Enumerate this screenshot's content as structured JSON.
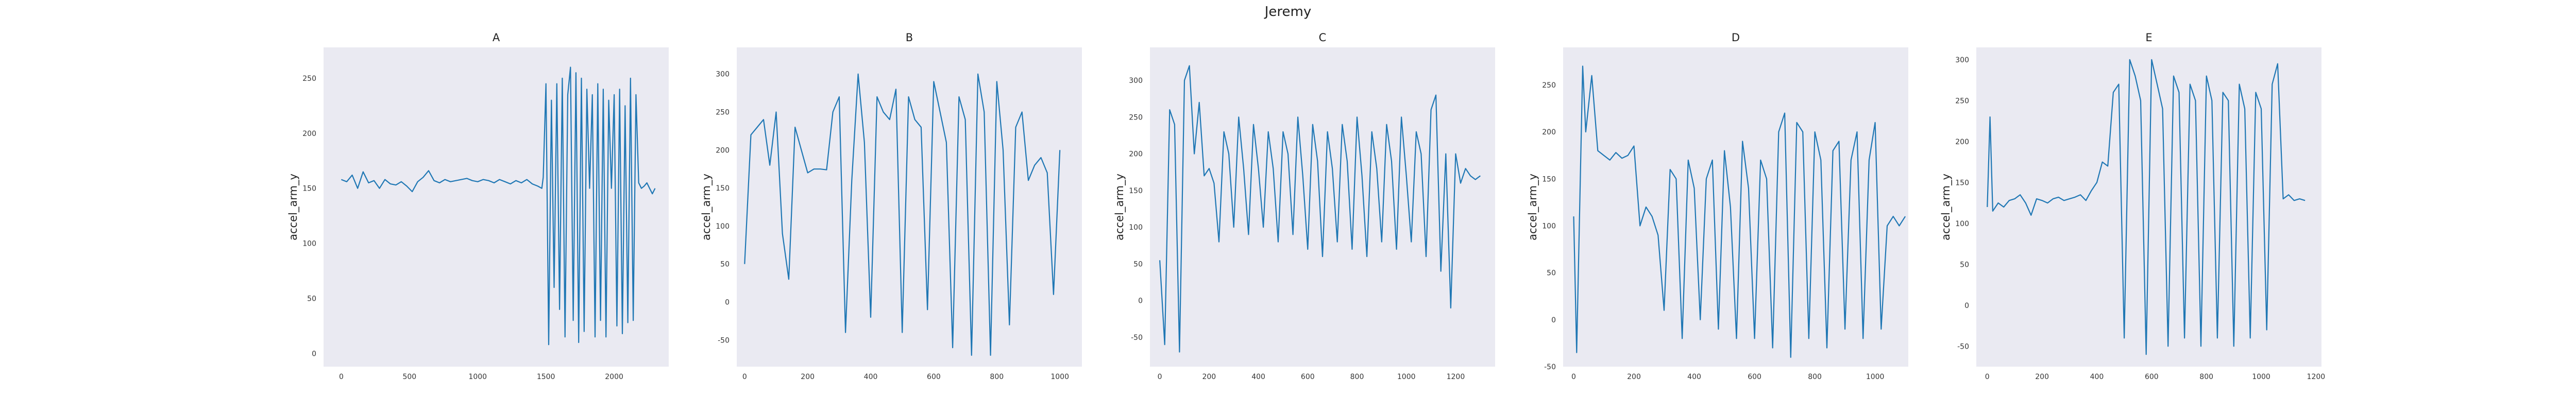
{
  "figure": {
    "suptitle": "Jeremy"
  },
  "colors": {
    "line": "#1f77b4",
    "axes_bg": "#eaeaf2"
  },
  "chart_data": [
    {
      "type": "line",
      "title": "A",
      "ylabel": "accel_arm_y",
      "xlabel": "",
      "xlim": [
        -130,
        2400
      ],
      "ylim": [
        -12,
        278
      ],
      "xticks": [
        0,
        500,
        1000,
        1500,
        2000
      ],
      "yticks": [
        0,
        50,
        100,
        150,
        200,
        250
      ],
      "grid": false,
      "x": [
        0,
        40,
        80,
        120,
        160,
        200,
        240,
        280,
        320,
        360,
        400,
        440,
        480,
        520,
        560,
        600,
        640,
        680,
        720,
        760,
        800,
        840,
        880,
        920,
        960,
        1000,
        1040,
        1080,
        1120,
        1160,
        1200,
        1240,
        1280,
        1320,
        1360,
        1400,
        1440,
        1470,
        1480,
        1500,
        1520,
        1540,
        1560,
        1580,
        1600,
        1620,
        1640,
        1660,
        1680,
        1700,
        1720,
        1740,
        1760,
        1780,
        1800,
        1820,
        1840,
        1860,
        1880,
        1900,
        1920,
        1940,
        1960,
        1980,
        2000,
        2020,
        2040,
        2060,
        2080,
        2100,
        2120,
        2140,
        2160,
        2180,
        2200,
        2220,
        2240,
        2260,
        2280,
        2300
      ],
      "values": [
        158,
        156,
        162,
        150,
        165,
        155,
        157,
        150,
        158,
        154,
        153,
        156,
        152,
        147,
        156,
        160,
        166,
        157,
        155,
        158,
        156,
        157,
        158,
        159,
        157,
        156,
        158,
        157,
        155,
        158,
        156,
        154,
        157,
        155,
        158,
        154,
        152,
        150,
        160,
        245,
        8,
        230,
        60,
        245,
        40,
        250,
        15,
        235,
        260,
        30,
        255,
        10,
        250,
        20,
        240,
        150,
        235,
        15,
        245,
        30,
        240,
        15,
        230,
        150,
        235,
        25,
        240,
        18,
        225,
        28,
        250,
        30,
        235,
        155,
        150,
        152,
        155,
        150,
        145,
        150
      ]
    },
    {
      "type": "line",
      "title": "B",
      "ylabel": "accel_arm_y",
      "xlabel": "",
      "xlim": [
        -25,
        1070
      ],
      "ylim": [
        -85,
        335
      ],
      "xticks": [
        0,
        200,
        400,
        600,
        800,
        1000
      ],
      "yticks": [
        -50,
        0,
        50,
        100,
        150,
        200,
        250,
        300
      ],
      "grid": false,
      "x": [
        0,
        20,
        40,
        60,
        80,
        100,
        120,
        140,
        160,
        180,
        200,
        220,
        240,
        260,
        280,
        300,
        320,
        340,
        360,
        380,
        400,
        420,
        440,
        460,
        480,
        500,
        520,
        540,
        560,
        580,
        600,
        620,
        640,
        660,
        680,
        700,
        720,
        740,
        760,
        780,
        800,
        820,
        840,
        860,
        880,
        900,
        920,
        940,
        960,
        980,
        1000
      ],
      "values": [
        50,
        220,
        230,
        240,
        180,
        250,
        90,
        30,
        230,
        200,
        170,
        175,
        175,
        174,
        250,
        270,
        -40,
        160,
        300,
        210,
        -20,
        270,
        250,
        240,
        280,
        -40,
        270,
        240,
        230,
        -10,
        290,
        250,
        210,
        -60,
        270,
        240,
        -70,
        300,
        250,
        -70,
        290,
        200,
        -30,
        230,
        250,
        160,
        180,
        190,
        170,
        10,
        200
      ]
    },
    {
      "type": "line",
      "title": "C",
      "ylabel": "accel_arm_y",
      "xlabel": "",
      "xlim": [
        -40,
        1360
      ],
      "ylim": [
        -90,
        345
      ],
      "xticks": [
        0,
        200,
        400,
        600,
        800,
        1000,
        1200
      ],
      "yticks": [
        -50,
        0,
        50,
        100,
        150,
        200,
        250,
        300
      ],
      "grid": false,
      "x": [
        0,
        20,
        40,
        60,
        80,
        100,
        120,
        140,
        160,
        180,
        200,
        220,
        240,
        260,
        280,
        300,
        320,
        340,
        360,
        380,
        400,
        420,
        440,
        460,
        480,
        500,
        520,
        540,
        560,
        580,
        600,
        620,
        640,
        660,
        680,
        700,
        720,
        740,
        760,
        780,
        800,
        820,
        840,
        860,
        880,
        900,
        920,
        940,
        960,
        980,
        1000,
        1020,
        1040,
        1060,
        1080,
        1100,
        1120,
        1140,
        1160,
        1180,
        1200,
        1220,
        1240,
        1260,
        1280,
        1300
      ],
      "values": [
        55,
        -60,
        260,
        240,
        -70,
        300,
        320,
        200,
        270,
        170,
        180,
        160,
        80,
        230,
        200,
        100,
        250,
        180,
        90,
        240,
        180,
        100,
        230,
        180,
        80,
        230,
        200,
        90,
        250,
        170,
        70,
        240,
        190,
        60,
        230,
        180,
        80,
        240,
        190,
        70,
        250,
        170,
        60,
        230,
        180,
        80,
        240,
        190,
        70,
        250,
        170,
        80,
        230,
        200,
        60,
        260,
        280,
        40,
        200,
        -10,
        200,
        160,
        180,
        170,
        165,
        170
      ]
    },
    {
      "type": "line",
      "title": "D",
      "ylabel": "accel_arm_y",
      "xlabel": "",
      "xlim": [
        -35,
        1110
      ],
      "ylim": [
        -50,
        290
      ],
      "xticks": [
        0,
        200,
        400,
        600,
        800,
        1000
      ],
      "yticks": [
        -50,
        0,
        50,
        100,
        150,
        200,
        250
      ],
      "grid": false,
      "x": [
        0,
        10,
        20,
        30,
        40,
        60,
        80,
        100,
        120,
        140,
        160,
        180,
        200,
        220,
        240,
        260,
        280,
        300,
        320,
        340,
        360,
        380,
        400,
        420,
        440,
        460,
        480,
        500,
        520,
        540,
        560,
        580,
        600,
        620,
        640,
        660,
        680,
        700,
        720,
        740,
        760,
        780,
        800,
        820,
        840,
        860,
        880,
        900,
        920,
        940,
        960,
        980,
        1000,
        1020,
        1040,
        1060,
        1080,
        1100
      ],
      "values": [
        110,
        -35,
        120,
        270,
        200,
        260,
        180,
        175,
        170,
        178,
        172,
        175,
        185,
        100,
        120,
        110,
        90,
        10,
        160,
        150,
        -20,
        170,
        140,
        0,
        150,
        170,
        -10,
        180,
        120,
        -20,
        190,
        140,
        -20,
        170,
        150,
        -30,
        200,
        220,
        -40,
        210,
        200,
        -20,
        200,
        170,
        -30,
        180,
        190,
        -10,
        170,
        200,
        -20,
        170,
        210,
        -10,
        100,
        110,
        100,
        110
      ]
    },
    {
      "type": "line",
      "title": "E",
      "ylabel": "accel_arm_y",
      "xlabel": "",
      "xlim": [
        -40,
        1220
      ],
      "ylim": [
        -75,
        315
      ],
      "xticks": [
        0,
        200,
        400,
        600,
        800,
        1000,
        1200
      ],
      "yticks": [
        -50,
        0,
        50,
        100,
        150,
        200,
        250,
        300
      ],
      "grid": false,
      "x": [
        0,
        10,
        20,
        40,
        60,
        80,
        100,
        120,
        140,
        160,
        180,
        200,
        220,
        240,
        260,
        280,
        300,
        320,
        340,
        360,
        380,
        400,
        420,
        440,
        460,
        480,
        500,
        520,
        540,
        560,
        580,
        600,
        620,
        640,
        660,
        680,
        700,
        720,
        740,
        760,
        780,
        800,
        820,
        840,
        860,
        880,
        900,
        920,
        940,
        960,
        980,
        1000,
        1020,
        1040,
        1060,
        1080,
        1100,
        1120,
        1140,
        1160
      ],
      "values": [
        120,
        230,
        115,
        125,
        120,
        128,
        130,
        135,
        125,
        110,
        130,
        128,
        125,
        130,
        132,
        128,
        130,
        132,
        135,
        128,
        140,
        150,
        175,
        170,
        260,
        270,
        -40,
        300,
        280,
        250,
        -60,
        300,
        270,
        240,
        -50,
        280,
        260,
        -40,
        270,
        250,
        -50,
        280,
        250,
        -40,
        260,
        250,
        -50,
        270,
        240,
        -40,
        260,
        240,
        -30,
        270,
        295,
        130,
        135,
        128,
        130,
        128
      ]
    }
  ]
}
